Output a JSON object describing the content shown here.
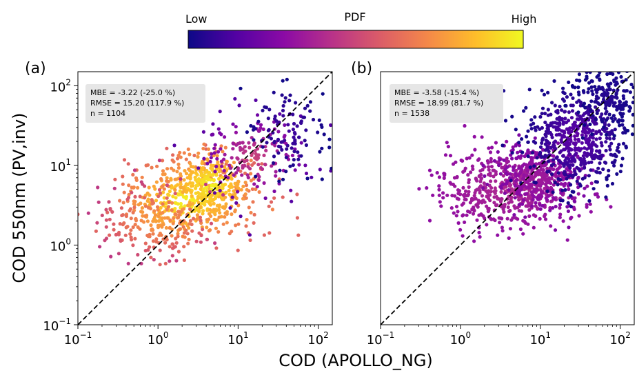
{
  "colorbar": {
    "title": "PDF",
    "low_label": "Low",
    "high_label": "High",
    "colormap": [
      "#0d0887",
      "#5302a3",
      "#8b0aa5",
      "#b83289",
      "#db5c68",
      "#f48849",
      "#febd2a",
      "#f0f921"
    ]
  },
  "x_axis_label": "COD (APOLLO_NG)",
  "y_axis_label": "COD 550nm (PV,inv)",
  "chart_data": [
    {
      "type": "scatter",
      "panel_label": "(a)",
      "xscale": "log",
      "yscale": "log",
      "xlim": [
        0.1,
        150
      ],
      "ylim": [
        0.1,
        150
      ],
      "xticks": [
        {
          "base": "10",
          "exp": "−1",
          "value": 0.1
        },
        {
          "base": "10",
          "exp": "0",
          "value": 1
        },
        {
          "base": "10",
          "exp": "1",
          "value": 10
        },
        {
          "base": "10",
          "exp": "2",
          "value": 100
        }
      ],
      "yticks": [
        {
          "base": "10",
          "exp": "−1",
          "value": 0.1
        },
        {
          "base": "10",
          "exp": "0",
          "value": 1
        },
        {
          "base": "10",
          "exp": "1",
          "value": 10
        },
        {
          "base": "10",
          "exp": "2",
          "value": 100
        }
      ],
      "reference_line": "1:1 dashed",
      "stats": {
        "mbe": "MBE = -3.22 (-25.0 %)",
        "rmse": "RMSE = 15.20 (117.9 %)",
        "n": "n = 1104"
      },
      "n_points": 1104,
      "clusters": [
        {
          "cx": 0.35,
          "cy": 0.55,
          "sx": 0.45,
          "sy": 0.28,
          "weight": 0.35,
          "density": [
            0.6,
            1.0
          ]
        },
        {
          "cx": 0.65,
          "cy": 0.75,
          "sx": 0.25,
          "sy": 0.22,
          "weight": 0.25,
          "density": [
            0.7,
            1.0
          ]
        },
        {
          "cx": 0.0,
          "cy": 0.3,
          "sx": 0.4,
          "sy": 0.25,
          "weight": 0.15,
          "density": [
            0.45,
            0.8
          ]
        },
        {
          "cx": 1.2,
          "cy": 1.1,
          "sx": 0.35,
          "sy": 0.3,
          "weight": 0.15,
          "density": [
            0.15,
            0.5
          ]
        },
        {
          "cx": 1.6,
          "cy": 1.45,
          "sx": 0.25,
          "sy": 0.3,
          "weight": 0.1,
          "density": [
            0.0,
            0.12
          ]
        }
      ]
    },
    {
      "type": "scatter",
      "panel_label": "(b)",
      "xscale": "log",
      "yscale": "log",
      "xlim": [
        0.1,
        150
      ],
      "ylim": [
        0.1,
        150
      ],
      "xticks": [
        {
          "base": "10",
          "exp": "−1",
          "value": 0.1
        },
        {
          "base": "10",
          "exp": "0",
          "value": 1
        },
        {
          "base": "10",
          "exp": "1",
          "value": 10
        },
        {
          "base": "10",
          "exp": "2",
          "value": 100
        }
      ],
      "yticks": [],
      "reference_line": "1:1 dashed",
      "stats": {
        "mbe": "MBE = -3.58 (-15.4 %)",
        "rmse": "RMSE = 18.99 (81.7 %)",
        "n": "n = 1538"
      },
      "n_points": 1538,
      "clusters": [
        {
          "cx": 0.6,
          "cy": 0.7,
          "sx": 0.45,
          "sy": 0.25,
          "weight": 0.35,
          "density": [
            0.3,
            0.4
          ]
        },
        {
          "cx": 1.0,
          "cy": 0.85,
          "sx": 0.25,
          "sy": 0.2,
          "weight": 0.2,
          "density": [
            0.25,
            0.35
          ]
        },
        {
          "cx": 1.45,
          "cy": 1.35,
          "sx": 0.3,
          "sy": 0.3,
          "weight": 0.35,
          "density": [
            0.02,
            0.18
          ]
        },
        {
          "cx": 1.85,
          "cy": 1.85,
          "sx": 0.2,
          "sy": 0.2,
          "weight": 0.1,
          "density": [
            0.0,
            0.06
          ]
        }
      ]
    }
  ]
}
